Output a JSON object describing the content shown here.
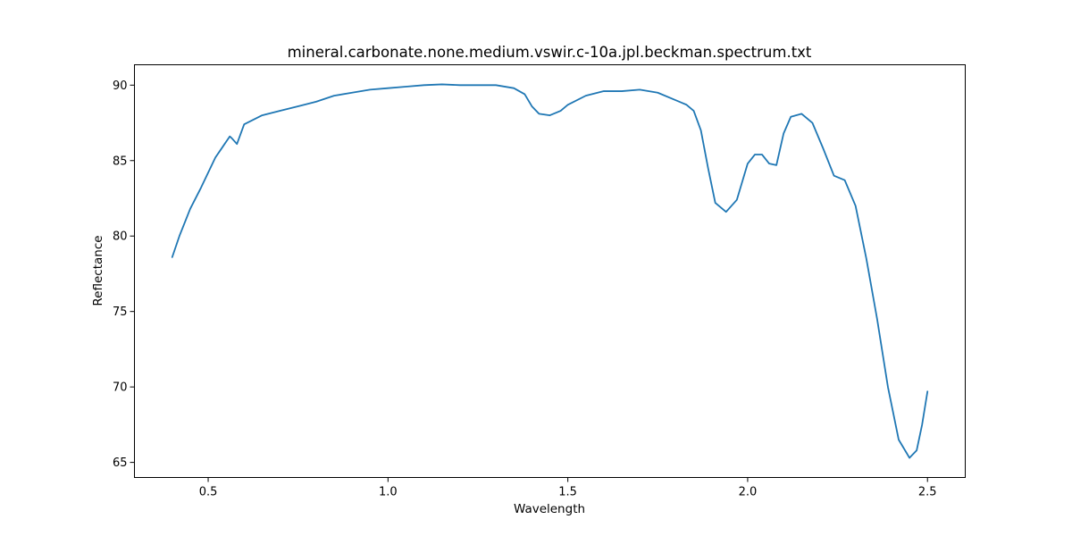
{
  "chart_data": {
    "type": "line",
    "title": "mineral.carbonate.none.medium.vswir.c-10a.jpl.beckman.spectrum.txt",
    "xlabel": "Wavelength",
    "ylabel": "Reflectance",
    "xlim": [
      0.295,
      2.605
    ],
    "ylim": [
      64.0,
      91.35
    ],
    "grid": false,
    "x_ticks": [
      0.5,
      1.0,
      1.5,
      2.0,
      2.5
    ],
    "x_tick_labels": [
      "0.5",
      "1.0",
      "1.5",
      "2.0",
      "2.5"
    ],
    "y_ticks": [
      65,
      70,
      75,
      80,
      85,
      90
    ],
    "y_tick_labels": [
      "65",
      "70",
      "75",
      "80",
      "85",
      "90"
    ],
    "color": "#1f77b4",
    "series": [
      {
        "x": [
          0.4,
          0.42,
          0.45,
          0.48,
          0.5,
          0.52,
          0.54,
          0.56,
          0.565,
          0.58,
          0.6,
          0.65,
          0.7,
          0.75,
          0.8,
          0.85,
          0.9,
          0.95,
          1.0,
          1.05,
          1.1,
          1.15,
          1.2,
          1.25,
          1.3,
          1.35,
          1.38,
          1.4,
          1.42,
          1.45,
          1.48,
          1.5,
          1.55,
          1.6,
          1.65,
          1.7,
          1.75,
          1.8,
          1.83,
          1.85,
          1.87,
          1.89,
          1.91,
          1.94,
          1.97,
          2.0,
          2.02,
          2.04,
          2.06,
          2.08,
          2.1,
          2.12,
          2.15,
          2.18,
          2.21,
          2.24,
          2.27,
          2.3,
          2.33,
          2.36,
          2.39,
          2.42,
          2.45,
          2.47,
          2.485,
          2.5
        ],
        "y": [
          78.6,
          80.0,
          81.8,
          83.2,
          84.2,
          85.2,
          85.9,
          86.6,
          86.5,
          86.1,
          87.4,
          88.0,
          88.3,
          88.6,
          88.9,
          89.3,
          89.5,
          89.7,
          89.8,
          89.9,
          90.0,
          90.05,
          90.0,
          90.0,
          90.0,
          89.8,
          89.4,
          88.6,
          88.1,
          88.0,
          88.3,
          88.7,
          89.3,
          89.6,
          89.6,
          89.7,
          89.5,
          89.0,
          88.7,
          88.3,
          87.0,
          84.5,
          82.2,
          81.6,
          82.4,
          84.8,
          85.4,
          85.4,
          84.8,
          84.7,
          86.8,
          87.9,
          88.1,
          87.5,
          85.8,
          84.0,
          83.7,
          82.0,
          78.5,
          74.5,
          70.0,
          66.5,
          65.3,
          65.8,
          67.5,
          69.7
        ]
      }
    ]
  }
}
